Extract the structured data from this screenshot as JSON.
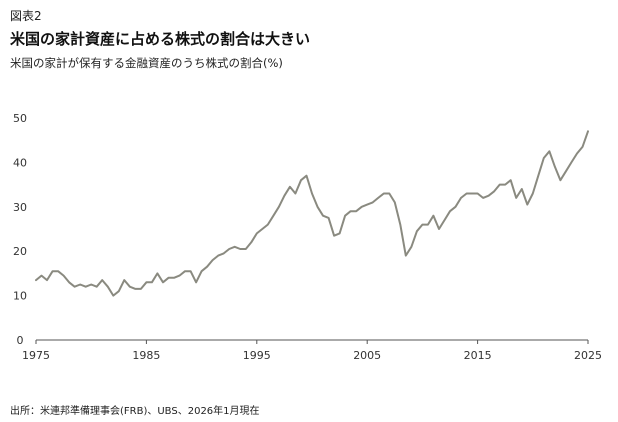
{
  "header": {
    "fig_label": "図表2",
    "title": "米国の家計資産に占める株式の割合は大きい",
    "subtitle": "米国の家計が保有する金融資産のうち株式の割合(%)"
  },
  "footer": {
    "source": "出所：米連邦準備理事会(FRB)、UBS、2026年1月現在"
  },
  "colors": {
    "line": "#8a8a80",
    "axis": "#555555"
  },
  "chart_data": {
    "type": "line",
    "title": "米国の家計資産に占める株式の割合は大きい",
    "ylabel": "",
    "xlabel": "",
    "xlim": [
      1975,
      2025
    ],
    "ylim": [
      0,
      50
    ],
    "xticks": [
      1975,
      1985,
      1995,
      2005,
      2015,
      2025
    ],
    "yticks": [
      0,
      10,
      20,
      30,
      40,
      50
    ],
    "grid": false,
    "series": [
      {
        "x": [
          1975,
          1975.5,
          1976,
          1976.5,
          1977,
          1977.5,
          1978,
          1978.5,
          1979,
          1979.5,
          1980,
          1980.5,
          1981,
          1981.5,
          1982,
          1982.5,
          1983,
          1983.5,
          1984,
          1984.5,
          1985,
          1985.5,
          1986,
          1986.5,
          1987,
          1987.5,
          1988,
          1988.5,
          1989,
          1989.5,
          1990,
          1990.5,
          1991,
          1991.5,
          1992,
          1992.5,
          1993,
          1993.5,
          1994,
          1994.5,
          1995,
          1995.5,
          1996,
          1996.5,
          1997,
          1997.5,
          1998,
          1998.5,
          1999,
          1999.5,
          2000,
          2000.5,
          2001,
          2001.5,
          2002,
          2002.5,
          2003,
          2003.5,
          2004,
          2004.5,
          2005,
          2005.5,
          2006,
          2006.5,
          2007,
          2007.5,
          2008,
          2008.5,
          2009,
          2009.5,
          2010,
          2010.5,
          2011,
          2011.5,
          2012,
          2012.5,
          2013,
          2013.5,
          2014,
          2014.5,
          2015,
          2015.5,
          2016,
          2016.5,
          2017,
          2017.5,
          2018,
          2018.5,
          2019,
          2019.5,
          2020,
          2020.5,
          2021,
          2021.5,
          2022,
          2022.5,
          2023,
          2023.5,
          2024,
          2024.5,
          2025
        ],
        "values": [
          13.5,
          14.5,
          13.5,
          15.5,
          15.5,
          14.5,
          13,
          12,
          12.5,
          12,
          12.5,
          12,
          13.5,
          12,
          10,
          11,
          13.5,
          12,
          11.5,
          11.5,
          13,
          13,
          15,
          13,
          14,
          14,
          14.5,
          15.5,
          15.5,
          13,
          15.5,
          16.5,
          18,
          19,
          19.5,
          20.5,
          21,
          20.5,
          20.5,
          22,
          24,
          25,
          26,
          28,
          30,
          32.5,
          34.5,
          33,
          36,
          37,
          33,
          30,
          28,
          27.5,
          23.5,
          24,
          28,
          29,
          29,
          30,
          30.5,
          31,
          32,
          33,
          33,
          31,
          26,
          19,
          21,
          24.5,
          26,
          26,
          28,
          25,
          27,
          29,
          30,
          32,
          33,
          33,
          33,
          32,
          32.5,
          33.5,
          35,
          35,
          36,
          32,
          34,
          30.5,
          33,
          37,
          41,
          42.5,
          39,
          36,
          38,
          40,
          42,
          43.5,
          47
        ]
      }
    ]
  }
}
